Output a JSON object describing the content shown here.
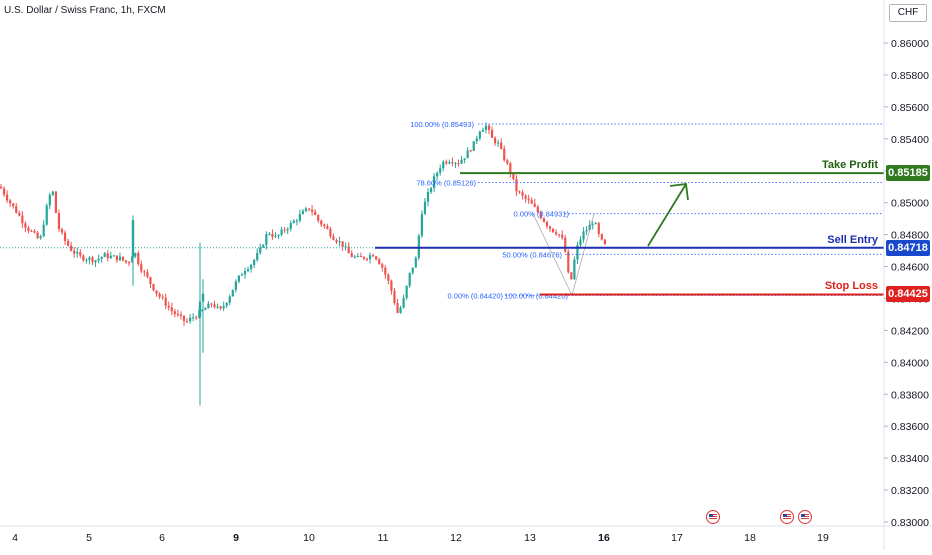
{
  "header": {
    "title": "U.S. Dollar / Swiss Franc, 1h, FXCM",
    "currency": "CHF"
  },
  "levels": {
    "take_profit": {
      "label": "Take Profit",
      "price": "0.85185",
      "value": 0.85185,
      "color": "#2f7a1f"
    },
    "sell_entry": {
      "label": "Sell Entry",
      "price": "0.84718",
      "value": 0.84718,
      "color": "#1b2fb0"
    },
    "stop_loss": {
      "label": "Stop Loss",
      "price": "0.84425",
      "value": 0.84425,
      "color": "#e0201f"
    }
  },
  "fib_left": [
    {
      "label": "100.00% (0.85493)",
      "value": 0.85493
    },
    {
      "label": "78.60% (0.85126)",
      "value": 0.85126
    },
    {
      "label": "0.00% (0.84420)",
      "value": 0.8442
    }
  ],
  "fib_right": [
    {
      "label": "0.00% (0.84931)",
      "value": 0.84931
    },
    {
      "label": "50.00% (0.84676)",
      "value": 0.84676
    },
    {
      "label": "100.00% (0.84420)",
      "value": 0.8442
    }
  ],
  "event_flags": [
    "us-flag-icon",
    "us-flag-icon",
    "us-flag-icon"
  ],
  "chart_data": {
    "type": "candlestick",
    "title": "U.S. Dollar / Swiss Franc, 1h, FXCM",
    "y_axis": {
      "currency": "CHF",
      "range": [
        0.83,
        0.862
      ],
      "ticks": [
        "0.86000",
        "0.85800",
        "0.85600",
        "0.85400",
        "0.85200",
        "0.85000",
        "0.84800",
        "0.84600",
        "0.84400",
        "0.84200",
        "0.84000",
        "0.83800",
        "0.83600",
        "0.83400",
        "0.83200",
        "0.83000"
      ]
    },
    "x_axis": {
      "ticks": [
        "4",
        "5",
        "6",
        "9",
        "10",
        "11",
        "12",
        "13",
        "16",
        "17",
        "18",
        "19"
      ],
      "bold_ticks": [
        "9",
        "16"
      ]
    },
    "current_price": 0.84718,
    "colors": {
      "up": "#26a69a",
      "down": "#ef5350"
    },
    "path_points": [
      [
        0,
        0.851
      ],
      [
        10,
        0.85
      ],
      [
        18,
        0.8493
      ],
      [
        26,
        0.8485
      ],
      [
        34,
        0.848
      ],
      [
        40,
        0.8476
      ],
      [
        46,
        0.8495
      ],
      [
        52,
        0.851
      ],
      [
        58,
        0.8485
      ],
      [
        64,
        0.8477
      ],
      [
        72,
        0.847
      ],
      [
        80,
        0.8466
      ],
      [
        88,
        0.8465
      ],
      [
        96,
        0.8464
      ],
      [
        104,
        0.8467
      ],
      [
        112,
        0.8466
      ],
      [
        120,
        0.8465
      ],
      [
        128,
        0.8462
      ],
      [
        134,
        0.847
      ],
      [
        140,
        0.846
      ],
      [
        148,
        0.8452
      ],
      [
        156,
        0.8444
      ],
      [
        164,
        0.8438
      ],
      [
        172,
        0.8432
      ],
      [
        180,
        0.8428
      ],
      [
        186,
        0.8425
      ],
      [
        192,
        0.8428
      ],
      [
        198,
        0.843
      ],
      [
        204,
        0.8433
      ],
      [
        212,
        0.8437
      ],
      [
        220,
        0.8432
      ],
      [
        228,
        0.844
      ],
      [
        236,
        0.845
      ],
      [
        244,
        0.8458
      ],
      [
        252,
        0.8462
      ],
      [
        260,
        0.847
      ],
      [
        268,
        0.8482
      ],
      [
        276,
        0.8478
      ],
      [
        284,
        0.8483
      ],
      [
        292,
        0.8487
      ],
      [
        300,
        0.8492
      ],
      [
        310,
        0.8497
      ],
      [
        318,
        0.8489
      ],
      [
        326,
        0.8484
      ],
      [
        334,
        0.8478
      ],
      [
        342,
        0.8474
      ],
      [
        350,
        0.8467
      ],
      [
        358,
        0.8465
      ],
      [
        366,
        0.8466
      ],
      [
        374,
        0.8468
      ],
      [
        382,
        0.846
      ],
      [
        390,
        0.8448
      ],
      [
        398,
        0.843
      ],
      [
        404,
        0.844
      ],
      [
        410,
        0.8456
      ],
      [
        416,
        0.8465
      ],
      [
        422,
        0.8495
      ],
      [
        428,
        0.8505
      ],
      [
        434,
        0.8515
      ],
      [
        442,
        0.8525
      ],
      [
        450,
        0.8527
      ],
      [
        458,
        0.8525
      ],
      [
        466,
        0.853
      ],
      [
        474,
        0.8537
      ],
      [
        480,
        0.8546
      ],
      [
        486,
        0.8548
      ],
      [
        492,
        0.854
      ],
      [
        498,
        0.8537
      ],
      [
        504,
        0.8528
      ],
      [
        510,
        0.852
      ],
      [
        516,
        0.8508
      ],
      [
        522,
        0.8504
      ],
      [
        530,
        0.85
      ],
      [
        538,
        0.8494
      ],
      [
        546,
        0.8487
      ],
      [
        552,
        0.8483
      ],
      [
        558,
        0.8481
      ],
      [
        564,
        0.8475
      ],
      [
        570,
        0.8447
      ],
      [
        576,
        0.847
      ],
      [
        582,
        0.848
      ],
      [
        588,
        0.8484
      ],
      [
        594,
        0.8489
      ],
      [
        600,
        0.8477
      ],
      [
        606,
        0.8472
      ]
    ],
    "notable_candles": [
      {
        "x": 133,
        "open": 0.8466,
        "close": 0.8489,
        "high": 0.8492,
        "low": 0.8448
      },
      {
        "x": 200,
        "open": 0.8428,
        "close": 0.8438,
        "high": 0.8475,
        "low": 0.8373
      },
      {
        "x": 203,
        "open": 0.8438,
        "close": 0.8443,
        "high": 0.8452,
        "low": 0.8406
      }
    ]
  }
}
